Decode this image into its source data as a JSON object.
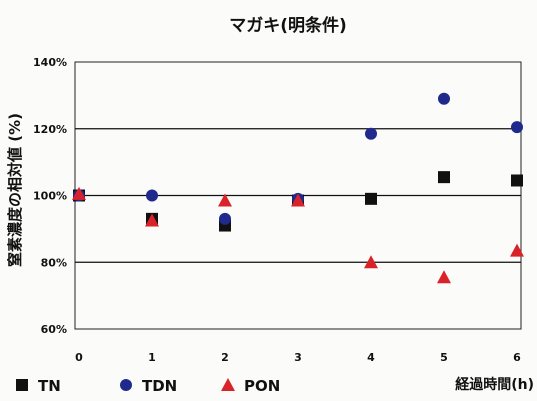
{
  "chart_data": {
    "type": "scatter",
    "title": "マガキ(明条件)",
    "xlabel": "経過時間(h)",
    "ylabel": "窒素濃度の相対値 (%)",
    "x_ticks": [
      "0",
      "1",
      "2",
      "3",
      "4",
      "5",
      "6"
    ],
    "y_ticks": [
      "60%",
      "80%",
      "100%",
      "120%",
      "140%"
    ],
    "xlim": [
      0,
      6
    ],
    "ylim": [
      60,
      140
    ],
    "grid": true,
    "legend_position": "bottom",
    "series": [
      {
        "name": "TN",
        "marker": "square",
        "color": "#111111",
        "points": [
          [
            0,
            100
          ],
          [
            1,
            93
          ],
          [
            2,
            91
          ],
          [
            3,
            98.5
          ],
          [
            4,
            99
          ],
          [
            5,
            105.5
          ],
          [
            6,
            104.5
          ]
        ]
      },
      {
        "name": "TDN",
        "marker": "circle",
        "color": "#1f2a8c",
        "points": [
          [
            0,
            100
          ],
          [
            1,
            100
          ],
          [
            2,
            93
          ],
          [
            3,
            99
          ],
          [
            4,
            118.5
          ],
          [
            5,
            129
          ],
          [
            6,
            120.5
          ]
        ]
      },
      {
        "name": "PON",
        "marker": "triangle",
        "color": "#d8232a",
        "points": [
          [
            0,
            100.5
          ],
          [
            1,
            92.5
          ],
          [
            2,
            98.5
          ],
          [
            3,
            98.5
          ],
          [
            4,
            80
          ],
          [
            5,
            75.5
          ],
          [
            6,
            83.5
          ]
        ]
      }
    ]
  }
}
